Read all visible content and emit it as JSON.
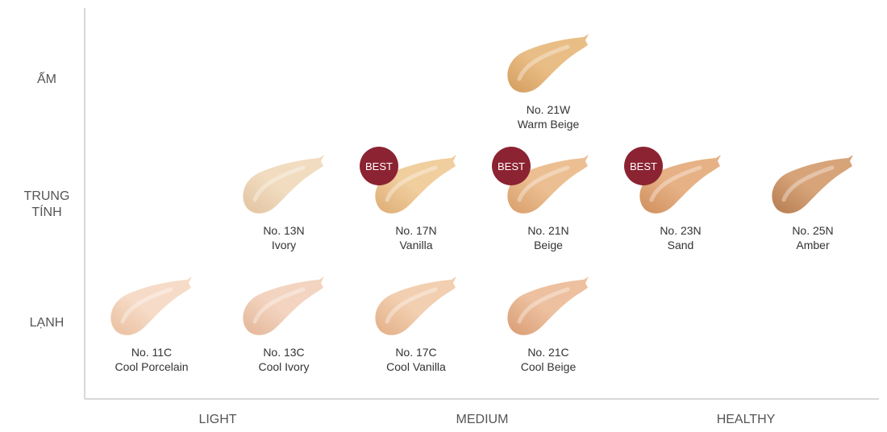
{
  "chart_data": {
    "type": "scatter",
    "y_categories": [
      "LẠNH",
      "TRUNG TÍNH",
      "ẤM"
    ],
    "x_categories": [
      "LIGHT",
      "MEDIUM",
      "HEALTHY"
    ],
    "y_tick_labels": [
      {
        "lines": [
          "ẤM"
        ]
      },
      {
        "lines": [
          "TRUNG",
          "TÍNH"
        ]
      },
      {
        "lines": [
          "LẠNH"
        ]
      }
    ],
    "best_label": "BEST",
    "badge_color": "#8B2332",
    "points": [
      {
        "code": "No. 21W",
        "name": "Warm Beige",
        "undertone": "ẤM",
        "col": 4,
        "best": false,
        "color": "#E9BE86",
        "dark": "#D49C5E"
      },
      {
        "code": "No. 13N",
        "name": "Ivory",
        "undertone": "TRUNG TÍNH",
        "col": 2,
        "best": false,
        "color": "#F1DCC0",
        "dark": "#E2C3A0"
      },
      {
        "code": "No. 17N",
        "name": "Vanilla",
        "undertone": "TRUNG TÍNH",
        "col": 3,
        "best": true,
        "color": "#F0CE9E",
        "dark": "#DDAC74"
      },
      {
        "code": "No. 21N",
        "name": "Beige",
        "undertone": "TRUNG TÍNH",
        "col": 4,
        "best": true,
        "color": "#ECBF92",
        "dark": "#D89E6A"
      },
      {
        "code": "No. 23N",
        "name": "Sand",
        "undertone": "TRUNG TÍNH",
        "col": 5,
        "best": true,
        "color": "#E6B185",
        "dark": "#D08F5C"
      },
      {
        "code": "No. 25N",
        "name": "Amber",
        "undertone": "TRUNG TÍNH",
        "col": 6,
        "best": false,
        "color": "#D7A47A",
        "dark": "#B57C50"
      },
      {
        "code": "No. 11C",
        "name": "Cool Porcelain",
        "undertone": "LẠNH",
        "col": 1,
        "best": false,
        "color": "#F6DCC8",
        "dark": "#E9BE9E"
      },
      {
        "code": "No. 13C",
        "name": "Cool Ivory",
        "undertone": "LẠNH",
        "col": 2,
        "best": false,
        "color": "#F3D4C0",
        "dark": "#E3B597"
      },
      {
        "code": "No. 17C",
        "name": "Cool Vanilla",
        "undertone": "LẠNH",
        "col": 3,
        "best": false,
        "color": "#F2CFB0",
        "dark": "#E2AE86"
      },
      {
        "code": "No. 21C",
        "name": "Cool Beige",
        "undertone": "LẠNH",
        "col": 4,
        "best": false,
        "color": "#EDC09F",
        "dark": "#D99C74"
      }
    ]
  }
}
